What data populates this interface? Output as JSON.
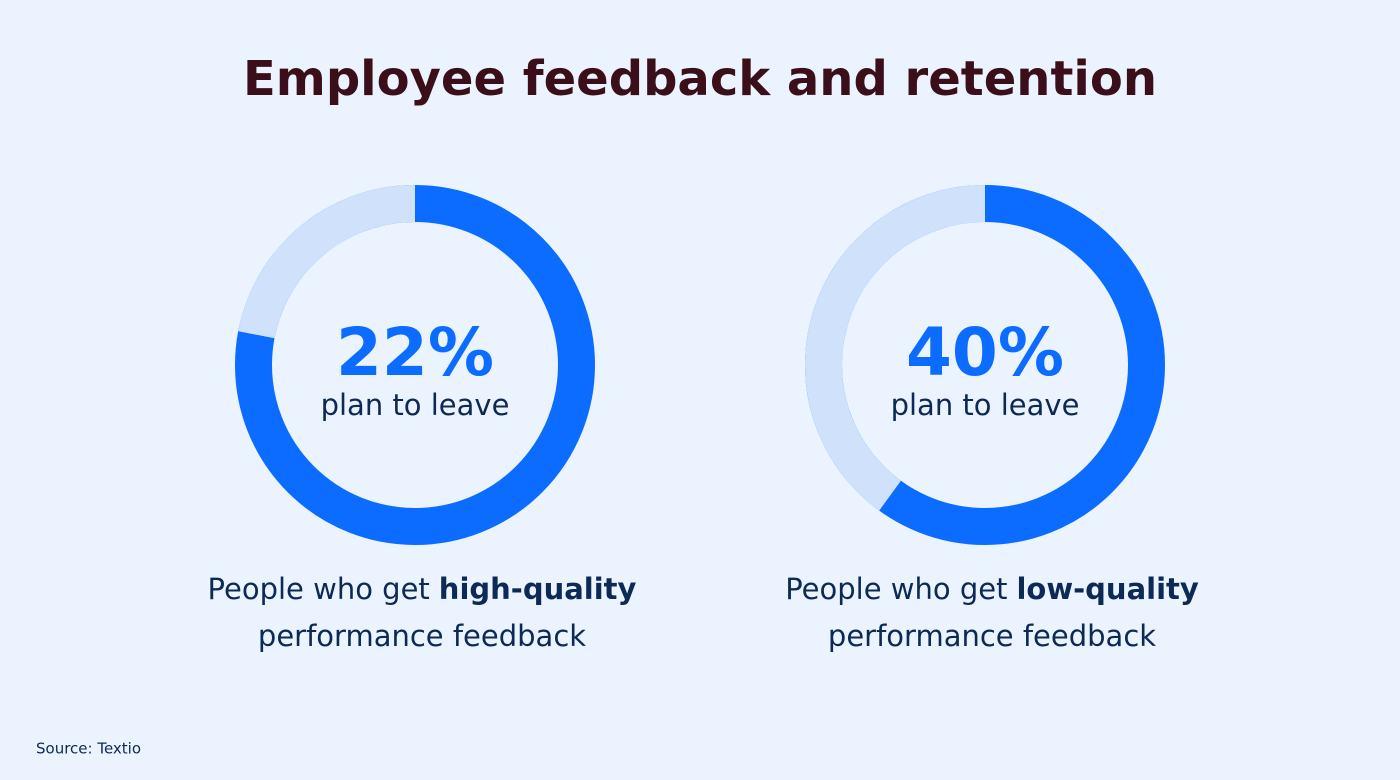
{
  "title": "Employee feedback and retention",
  "source": "Source: Textio",
  "chart_data": [
    {
      "type": "donut",
      "values": [
        22
      ],
      "value_labels": [
        "22%"
      ],
      "label": "plan to leave",
      "caption": [
        "People who get",
        "high-quality",
        "performance feedback"
      ],
      "color": "#d0e2fb",
      "ring_color": "#0b6cff"
    },
    {
      "type": "donut",
      "values": [
        40
      ],
      "value_labels": [
        "40%"
      ],
      "label": "plan to leave",
      "caption": [
        "People who get",
        "low-quality",
        "performance feedback"
      ],
      "color": "#d0e2fb",
      "ring_color": "#0b6cff"
    }
  ]
}
